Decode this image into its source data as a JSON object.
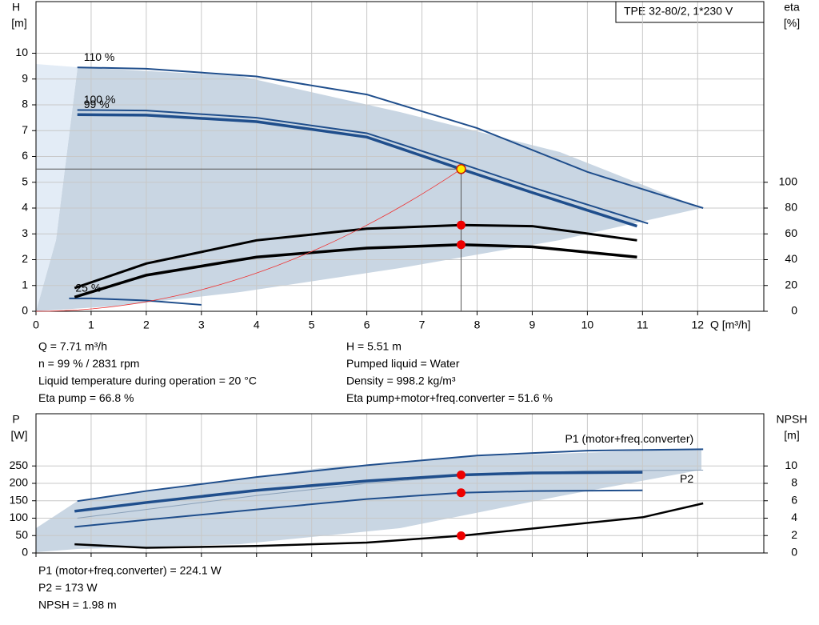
{
  "chart_data": [
    {
      "type": "line",
      "title": "TPE 32-80/2, 1*230 V",
      "ylabel": "H",
      "yunit": "[m]",
      "y2label": "eta",
      "y2unit": "[%]",
      "xlabel": "Q [m³/h]",
      "xlim": [
        0,
        13.2
      ],
      "xticks": [
        0,
        1,
        2,
        3,
        4,
        5,
        6,
        7,
        8,
        9,
        10,
        11,
        12
      ],
      "xtick_labels": true,
      "ylim": [
        0,
        12
      ],
      "yticks": [
        0,
        1,
        2,
        3,
        4,
        5,
        6,
        7,
        8,
        9,
        10
      ],
      "y2lim": [
        0,
        240
      ],
      "y2ticks": [
        0,
        20,
        40,
        60,
        80,
        100
      ],
      "grid": true,
      "series": [
        {
          "name": "110 %",
          "color": "#1f4e8c",
          "width": 2,
          "axis": "y",
          "x": [
            0.75,
            2,
            4,
            6,
            8,
            10,
            12.1
          ],
          "values": [
            9.45,
            9.4,
            9.1,
            8.4,
            7.1,
            5.4,
            4.0
          ]
        },
        {
          "name": "100 %",
          "color": "#1f4e8c",
          "width": 2,
          "axis": "y",
          "x": [
            0.75,
            2,
            4,
            6,
            7.71,
            9,
            11.1
          ],
          "values": [
            7.8,
            7.78,
            7.5,
            6.9,
            5.72,
            4.8,
            3.4
          ]
        },
        {
          "name": "99 %",
          "color": "#1f4e8c",
          "width": 3.5,
          "axis": "y",
          "x": [
            0.75,
            2,
            4,
            6,
            7.71,
            9,
            10.9
          ],
          "values": [
            7.62,
            7.6,
            7.35,
            6.75,
            5.51,
            4.6,
            3.3
          ]
        },
        {
          "name": "25 %",
          "color": "#1f4e8c",
          "width": 2,
          "axis": "y",
          "x": [
            0.6,
            1,
            2,
            3
          ],
          "values": [
            0.5,
            0.5,
            0.42,
            0.25
          ]
        },
        {
          "color": "#000000",
          "width": 3,
          "axis": "y2",
          "x": [
            0.7,
            2,
            4,
            6,
            7.71,
            9,
            10.9
          ],
          "values": [
            18,
            37,
            55,
            64,
            66.8,
            66,
            55
          ]
        },
        {
          "color": "#000000",
          "width": 3.5,
          "axis": "y2",
          "x": [
            0.7,
            2,
            4,
            6,
            7.71,
            9,
            10.9
          ],
          "values": [
            11,
            28,
            42,
            49,
            51.6,
            50,
            42
          ]
        }
      ],
      "points": [
        {
          "x": 7.71,
          "y": 5.51,
          "axis": "y",
          "color": "#ffee00",
          "guides": true
        },
        {
          "x": 7.71,
          "y": 66.8,
          "axis": "y2",
          "color": "#ee0000"
        },
        {
          "x": 7.71,
          "y": 51.6,
          "axis": "y2",
          "color": "#ee0000"
        }
      ],
      "info": [
        [
          "Q = 7.71 m³/h",
          "n = 99 % / 2831 rpm",
          "Liquid temperature during operation = 20 °C",
          "Eta pump = 66.8 %"
        ],
        [
          "H = 5.51 m",
          "Pumped liquid = Water",
          "Density = 998.2 kg/m³",
          "Eta pump+motor+freq.converter = 51.6 %"
        ]
      ]
    },
    {
      "type": "line",
      "ylabel": "P",
      "yunit": "[W]",
      "y2label": "NPSH",
      "y2unit": "[m]",
      "xlim": [
        0,
        13.2
      ],
      "xticks": [
        0,
        1,
        2,
        3,
        4,
        5,
        6,
        7,
        8,
        9,
        10,
        11,
        12
      ],
      "xtick_labels": false,
      "ylim": [
        0,
        400
      ],
      "yticks": [
        0,
        50,
        100,
        150,
        200,
        250
      ],
      "y2lim": [
        0,
        16
      ],
      "y2ticks": [
        0,
        2,
        4,
        6,
        8,
        10
      ],
      "grid": true,
      "series": [
        {
          "name": "P1 (motor+freq.converter)",
          "color": "#1f4e8c",
          "width": 2,
          "axis": "y",
          "x": [
            0.75,
            2,
            4,
            6,
            8,
            10,
            12.1
          ],
          "values": [
            149,
            178,
            218,
            252,
            280,
            294,
            298
          ]
        },
        {
          "name": "P2",
          "color": "#8aa0b8",
          "width": 1,
          "axis": "y",
          "x": [
            0.75,
            2,
            4,
            6,
            8,
            10,
            12.1
          ],
          "values": [
            100,
            125,
            165,
            200,
            225,
            236,
            238
          ]
        },
        {
          "color": "#1f4e8c",
          "width": 3.5,
          "axis": "y",
          "x": [
            0.7,
            2,
            4,
            6,
            7.71,
            9,
            11
          ],
          "values": [
            120,
            145,
            180,
            207,
            224.1,
            230,
            232
          ]
        },
        {
          "color": "#1f4e8c",
          "width": 2,
          "axis": "y",
          "x": [
            0.7,
            2,
            4,
            6,
            7.71,
            9,
            11
          ],
          "values": [
            75,
            95,
            125,
            155,
            173,
            178,
            180
          ]
        },
        {
          "color": "#000000",
          "width": 2.5,
          "axis": "y2",
          "x": [
            0.7,
            2,
            4,
            6,
            7.71,
            9,
            11,
            12.1
          ],
          "values": [
            1.0,
            0.6,
            0.8,
            1.2,
            1.98,
            2.8,
            4.1,
            5.7
          ]
        }
      ],
      "points": [
        {
          "x": 7.71,
          "y": 224.1,
          "axis": "y",
          "color": "#ee0000"
        },
        {
          "x": 7.71,
          "y": 173,
          "axis": "y",
          "color": "#ee0000"
        },
        {
          "x": 7.71,
          "y": 1.98,
          "axis": "y2",
          "color": "#ee0000"
        }
      ],
      "info": [
        [
          "P1 (motor+freq.converter) = 224.1 W",
          "P2 = 173 W",
          "NPSH = 1.98 m"
        ]
      ]
    }
  ]
}
